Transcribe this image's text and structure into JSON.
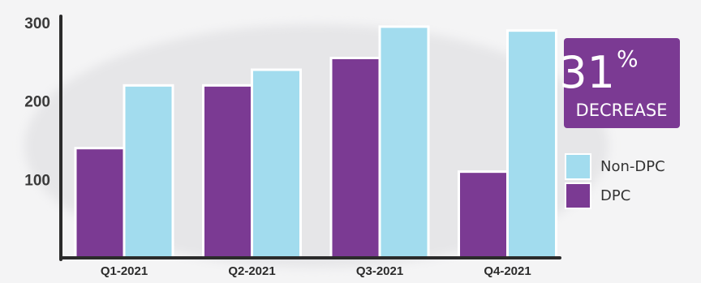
{
  "chart_data": {
    "type": "bar",
    "categories": [
      "Q1-2021",
      "Q2-2021",
      "Q3-2021",
      "Q4-2021"
    ],
    "series": [
      {
        "name": "DPC",
        "values": [
          140,
          220,
          255,
          110
        ],
        "color": "#7b3a93"
      },
      {
        "name": "Non-DPC",
        "values": [
          220,
          240,
          295,
          290
        ],
        "color": "#a2dcee"
      }
    ],
    "yticks": [
      100,
      200,
      300
    ],
    "ylim": [
      0,
      300
    ],
    "title": "",
    "xlabel": "",
    "ylabel": "",
    "legend_position": "right",
    "grid": false
  },
  "badge": {
    "value": "31",
    "unit": "%",
    "label": "DECREASE",
    "color": "#7b3a93"
  },
  "legend": [
    {
      "name": "Non-DPC",
      "color": "#a2dcee"
    },
    {
      "name": "DPC",
      "color": "#7b3a93"
    }
  ]
}
